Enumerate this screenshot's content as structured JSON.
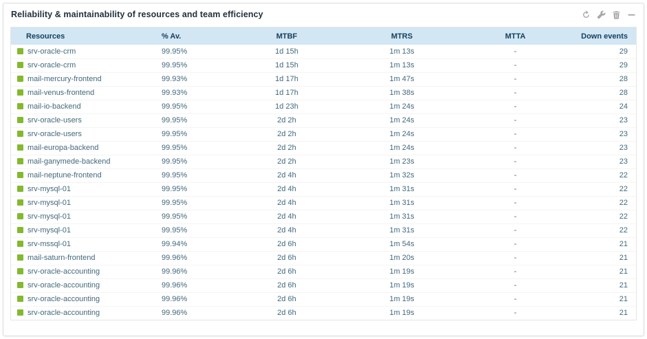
{
  "widget": {
    "title": "Reliability & maintainability of resources and team efficiency",
    "toolbar": [
      {
        "name": "refresh-icon"
      },
      {
        "name": "configure-icon"
      },
      {
        "name": "delete-icon"
      },
      {
        "name": "collapse-icon"
      }
    ]
  },
  "colors": {
    "status_ok_green": "#82b92e",
    "header_background": "#d2e6f3",
    "header_text": "#16405d",
    "body_text": "#41697c",
    "card_border": "#dcdcdc"
  },
  "table": {
    "columns": [
      "Resources",
      "% Av.",
      "MTBF",
      "MTRS",
      "MTTA",
      "Down events"
    ],
    "rows": [
      {
        "status_color": "#82b92e",
        "resource": "srv-oracle-crm",
        "availability": "99.95%",
        "mtbf": "1d 15h",
        "mtrs": "1m 13s",
        "mtta": "-",
        "down_events": "29"
      },
      {
        "status_color": "#82b92e",
        "resource": "srv-oracle-crm",
        "availability": "99.95%",
        "mtbf": "1d 15h",
        "mtrs": "1m 13s",
        "mtta": "-",
        "down_events": "29"
      },
      {
        "status_color": "#82b92e",
        "resource": "mail-mercury-frontend",
        "availability": "99.93%",
        "mtbf": "1d 17h",
        "mtrs": "1m 47s",
        "mtta": "-",
        "down_events": "28"
      },
      {
        "status_color": "#82b92e",
        "resource": "mail-venus-frontend",
        "availability": "99.93%",
        "mtbf": "1d 17h",
        "mtrs": "1m 38s",
        "mtta": "-",
        "down_events": "28"
      },
      {
        "status_color": "#82b92e",
        "resource": "mail-io-backend",
        "availability": "99.95%",
        "mtbf": "1d 23h",
        "mtrs": "1m 24s",
        "mtta": "-",
        "down_events": "24"
      },
      {
        "status_color": "#82b92e",
        "resource": "srv-oracle-users",
        "availability": "99.95%",
        "mtbf": "2d 2h",
        "mtrs": "1m 24s",
        "mtta": "-",
        "down_events": "23"
      },
      {
        "status_color": "#82b92e",
        "resource": "srv-oracle-users",
        "availability": "99.95%",
        "mtbf": "2d 2h",
        "mtrs": "1m 24s",
        "mtta": "-",
        "down_events": "23"
      },
      {
        "status_color": "#82b92e",
        "resource": "mail-europa-backend",
        "availability": "99.95%",
        "mtbf": "2d 2h",
        "mtrs": "1m 24s",
        "mtta": "-",
        "down_events": "23"
      },
      {
        "status_color": "#82b92e",
        "resource": "mail-ganymede-backend",
        "availability": "99.95%",
        "mtbf": "2d 2h",
        "mtrs": "1m 23s",
        "mtta": "-",
        "down_events": "23"
      },
      {
        "status_color": "#82b92e",
        "resource": "mail-neptune-frontend",
        "availability": "99.95%",
        "mtbf": "2d 4h",
        "mtrs": "1m 32s",
        "mtta": "-",
        "down_events": "22"
      },
      {
        "status_color": "#82b92e",
        "resource": "srv-mysql-01",
        "availability": "99.95%",
        "mtbf": "2d 4h",
        "mtrs": "1m 31s",
        "mtta": "-",
        "down_events": "22"
      },
      {
        "status_color": "#82b92e",
        "resource": "srv-mysql-01",
        "availability": "99.95%",
        "mtbf": "2d 4h",
        "mtrs": "1m 31s",
        "mtta": "-",
        "down_events": "22"
      },
      {
        "status_color": "#82b92e",
        "resource": "srv-mysql-01",
        "availability": "99.95%",
        "mtbf": "2d 4h",
        "mtrs": "1m 31s",
        "mtta": "-",
        "down_events": "22"
      },
      {
        "status_color": "#82b92e",
        "resource": "srv-mysql-01",
        "availability": "99.95%",
        "mtbf": "2d 4h",
        "mtrs": "1m 31s",
        "mtta": "-",
        "down_events": "22"
      },
      {
        "status_color": "#82b92e",
        "resource": "srv-mssql-01",
        "availability": "99.94%",
        "mtbf": "2d 6h",
        "mtrs": "1m 54s",
        "mtta": "-",
        "down_events": "21"
      },
      {
        "status_color": "#82b92e",
        "resource": "mail-saturn-frontend",
        "availability": "99.96%",
        "mtbf": "2d 6h",
        "mtrs": "1m 20s",
        "mtta": "-",
        "down_events": "21"
      },
      {
        "status_color": "#82b92e",
        "resource": "srv-oracle-accounting",
        "availability": "99.96%",
        "mtbf": "2d 6h",
        "mtrs": "1m 19s",
        "mtta": "-",
        "down_events": "21"
      },
      {
        "status_color": "#82b92e",
        "resource": "srv-oracle-accounting",
        "availability": "99.96%",
        "mtbf": "2d 6h",
        "mtrs": "1m 19s",
        "mtta": "-",
        "down_events": "21"
      },
      {
        "status_color": "#82b92e",
        "resource": "srv-oracle-accounting",
        "availability": "99.96%",
        "mtbf": "2d 6h",
        "mtrs": "1m 19s",
        "mtta": "-",
        "down_events": "21"
      },
      {
        "status_color": "#82b92e",
        "resource": "srv-oracle-accounting",
        "availability": "99.96%",
        "mtbf": "2d 6h",
        "mtrs": "1m 19s",
        "mtta": "-",
        "down_events": "21"
      }
    ]
  }
}
